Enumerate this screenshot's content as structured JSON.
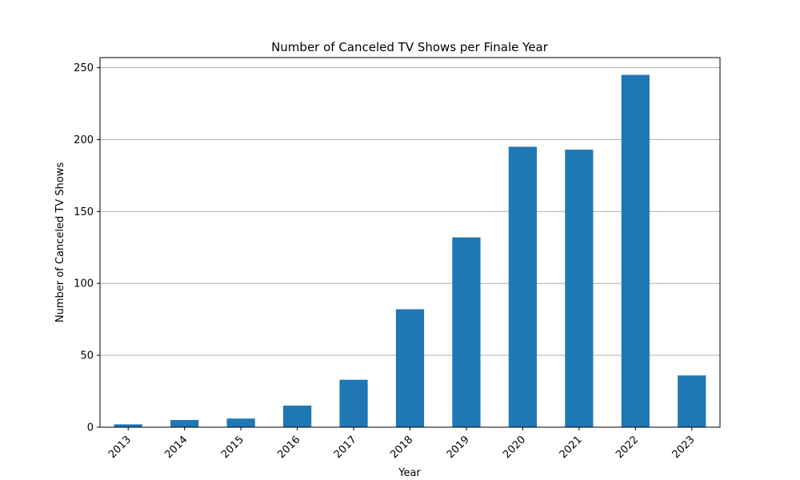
{
  "chart_data": {
    "type": "bar",
    "title": "Number of Canceled TV Shows per Finale Year",
    "xlabel": "Year",
    "ylabel": "Number of Canceled TV Shows",
    "categories": [
      "2013",
      "2014",
      "2015",
      "2016",
      "2017",
      "2018",
      "2019",
      "2020",
      "2021",
      "2022",
      "2023"
    ],
    "values": [
      2,
      5,
      6,
      15,
      33,
      82,
      132,
      195,
      193,
      245,
      36
    ],
    "ylim": [
      0,
      257
    ],
    "yticks": [
      0,
      50,
      100,
      150,
      200,
      250
    ],
    "grid": "horizontal",
    "legend": "none",
    "x_tick_rotation": 45,
    "bar_color": "#1f77b4"
  }
}
